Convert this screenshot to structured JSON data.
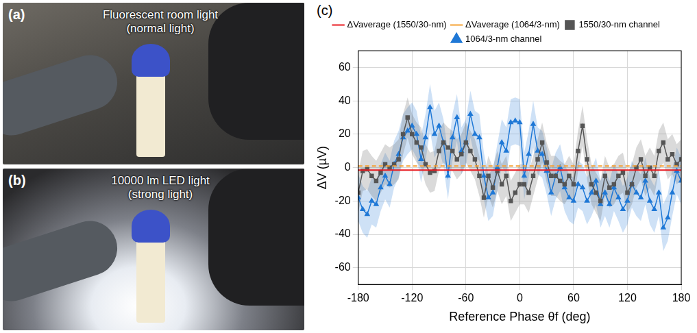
{
  "panels": [
    {
      "letter": "(a)",
      "title": "Fluorescent room light",
      "subtitle": "(normal light)"
    },
    {
      "letter": "(b)",
      "title": "10000 lm LED light",
      "subtitle": "(strong light)"
    }
  ],
  "chart_data": {
    "letter": "(c)",
    "type": "line",
    "x_label": "Reference Phase θf (deg)",
    "y_label": "ΔV (µV)",
    "x": [
      -180,
      -175,
      -170,
      -165,
      -160,
      -155,
      -150,
      -145,
      -140,
      -135,
      -130,
      -125,
      -120,
      -115,
      -110,
      -105,
      -100,
      -95,
      -90,
      -85,
      -80,
      -75,
      -70,
      -65,
      -60,
      -55,
      -50,
      -45,
      -40,
      -35,
      -30,
      -25,
      -20,
      -15,
      -10,
      -5,
      0,
      5,
      10,
      15,
      20,
      25,
      30,
      35,
      40,
      45,
      50,
      55,
      60,
      65,
      70,
      75,
      80,
      85,
      90,
      95,
      100,
      105,
      110,
      115,
      120,
      125,
      130,
      135,
      140,
      145,
      150,
      155,
      160,
      165,
      170,
      175,
      180
    ],
    "xlim": [
      -180,
      180
    ],
    "xticks": [
      -180,
      -120,
      -60,
      0,
      60,
      120,
      180
    ],
    "ylim": [
      -70,
      70
    ],
    "yticks": [
      -60,
      -40,
      -20,
      0,
      20,
      40,
      60
    ],
    "grid": true,
    "legend": "top",
    "series": [
      {
        "name": "1550/30-nm channel",
        "color": "#555555",
        "marker": "square",
        "line_style": "solid",
        "error": 12,
        "values": [
          -15,
          -2,
          -1,
          -5,
          -8,
          -3,
          2,
          0,
          2,
          5,
          20,
          30,
          20,
          15,
          12,
          2,
          -3,
          -2,
          10,
          15,
          12,
          10,
          5,
          8,
          15,
          10,
          5,
          -5,
          -18,
          -5,
          -12,
          -2,
          -10,
          -5,
          -20,
          -15,
          -10,
          -10,
          -15,
          -5,
          5,
          15,
          3,
          -5,
          -5,
          -8,
          -10,
          -5,
          -10,
          10,
          25,
          5,
          -10,
          -15,
          -20,
          -5,
          -12,
          -10,
          -5,
          -3,
          -15,
          -10,
          0,
          5,
          -5,
          0,
          -5,
          10,
          15,
          5,
          8,
          2,
          5
        ]
      },
      {
        "name": "ΔVaverage (1550/30-nm)",
        "color": "#e8191f",
        "line_style": "solid",
        "value": -1.5
      },
      {
        "name": "1064/3-nm channel",
        "color": "#1f78d6",
        "marker": "triangle",
        "line_style": "solid",
        "error": 14,
        "values": [
          -18,
          -25,
          -28,
          -20,
          -22,
          -12,
          -5,
          -10,
          2,
          8,
          18,
          22,
          25,
          20,
          5,
          18,
          36,
          20,
          25,
          15,
          -5,
          18,
          30,
          10,
          15,
          32,
          20,
          18,
          -5,
          -18,
          -15,
          0,
          15,
          10,
          27,
          28,
          27,
          -5,
          8,
          26,
          10,
          8,
          -2,
          -15,
          -5,
          0,
          -12,
          -18,
          -20,
          -10,
          -12,
          -20,
          -15,
          -8,
          -22,
          -15,
          -22,
          -12,
          -18,
          -25,
          -20,
          -10,
          -15,
          -18,
          -8,
          -20,
          -25,
          -15,
          -36,
          -30,
          -15,
          -2,
          -8
        ]
      },
      {
        "name": "ΔVaverage (1064/3-nm)",
        "color": "#f5a030",
        "line_style": "dashed",
        "value": 1.0
      }
    ]
  }
}
